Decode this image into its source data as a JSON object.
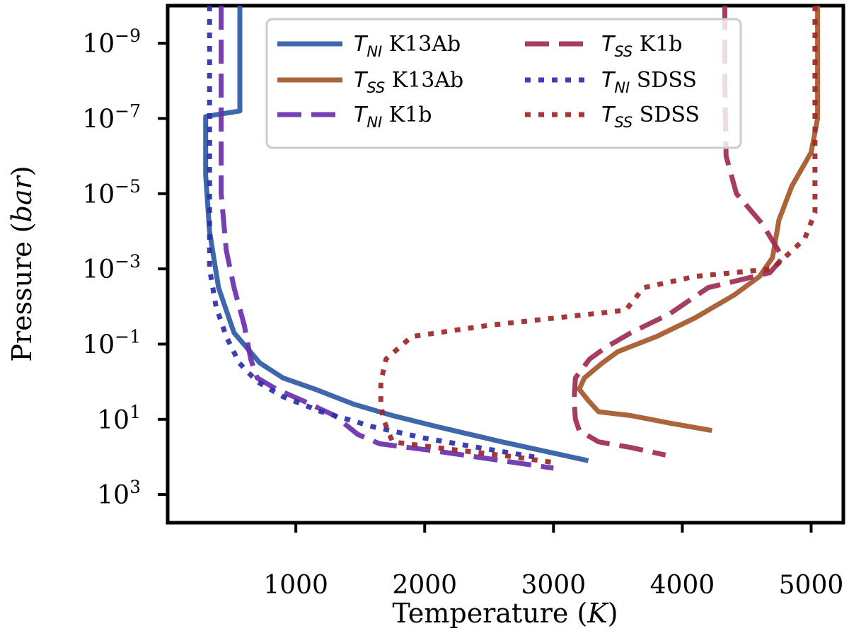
{
  "chart_data": {
    "type": "line",
    "xlabel": "Temperature (K)",
    "xlabel_parts": {
      "main": "Temperature (",
      "var": "K",
      "end": ")"
    },
    "ylabel": "Pressure (bar)",
    "ylabel_parts": {
      "main": "Pressure (",
      "var": "bar",
      "end": ")"
    },
    "xlim": [
      5,
      5250
    ],
    "ylim_log10": [
      -10.0,
      3.75
    ],
    "y_inverted": true,
    "y_scale": "log",
    "grid": false,
    "legend_position": "upper-center",
    "x_ticks": [
      1000,
      2000,
      3000,
      4000,
      5000
    ],
    "x_tick_labels": [
      "1000",
      "2000",
      "3000",
      "4000",
      "5000"
    ],
    "y_ticks": [
      {
        "value": -9,
        "base": "10",
        "exp": "−9"
      },
      {
        "value": -7,
        "base": "10",
        "exp": "−7"
      },
      {
        "value": -5,
        "base": "10",
        "exp": "−5"
      },
      {
        "value": -3,
        "base": "10",
        "exp": "−3"
      },
      {
        "value": -1,
        "base": "10",
        "exp": "−1"
      },
      {
        "value": 1,
        "base": "10",
        "exp": "1"
      },
      {
        "value": 3,
        "base": "10",
        "exp": "3"
      }
    ],
    "series": [
      {
        "name": "T_NI K13Ab",
        "sym": "T",
        "sub": "NI",
        "target": "K13Ab",
        "color": "#2f5ba5",
        "style": "solid",
        "points": [
          [
            565,
            -10
          ],
          [
            565,
            -7.2
          ],
          [
            380,
            -7.1
          ],
          [
            300,
            -7.05
          ],
          [
            300,
            -5.5
          ],
          [
            330,
            -4
          ],
          [
            400,
            -2.5
          ],
          [
            520,
            -1.3
          ],
          [
            720,
            -0.5
          ],
          [
            900,
            -0.1
          ],
          [
            1150,
            0.2
          ],
          [
            1450,
            0.6
          ],
          [
            1750,
            0.9
          ],
          [
            2100,
            1.2
          ],
          [
            2600,
            1.6
          ],
          [
            3270,
            2.1
          ]
        ]
      },
      {
        "name": "T_SS K13Ab",
        "sym": "T",
        "sub": "SS",
        "target": "K13Ab",
        "color": "#a5582a",
        "style": "solid",
        "points": [
          [
            5050,
            -10
          ],
          [
            5050,
            -7
          ],
          [
            5000,
            -6.1
          ],
          [
            4850,
            -5.2
          ],
          [
            4750,
            -4.3
          ],
          [
            4700,
            -3.3
          ],
          [
            4600,
            -2.8
          ],
          [
            4400,
            -2.3
          ],
          [
            4100,
            -1.7
          ],
          [
            3800,
            -1.2
          ],
          [
            3500,
            -0.8
          ],
          [
            3380,
            -0.5
          ],
          [
            3240,
            -0.1
          ],
          [
            3200,
            0.2
          ],
          [
            3270,
            0.5
          ],
          [
            3350,
            0.8
          ],
          [
            3600,
            0.9
          ],
          [
            3900,
            1.1
          ],
          [
            4230,
            1.3
          ]
        ]
      },
      {
        "name": "T_NI K1b",
        "sym": "T",
        "sub": "NI",
        "target": "K1b",
        "color": "#6a2fad",
        "style": "dashed",
        "points": [
          [
            420,
            -10
          ],
          [
            420,
            -7
          ],
          [
            420,
            -5
          ],
          [
            460,
            -3.5
          ],
          [
            520,
            -2.5
          ],
          [
            600,
            -1.5
          ],
          [
            650,
            -0.6
          ],
          [
            700,
            -0.1
          ],
          [
            850,
            0.2
          ],
          [
            1050,
            0.5
          ],
          [
            1300,
            0.9
          ],
          [
            1480,
            1.4
          ],
          [
            1650,
            1.65
          ],
          [
            2100,
            1.85
          ],
          [
            2600,
            2.1
          ],
          [
            3000,
            2.3
          ]
        ]
      },
      {
        "name": "T_SS K1b",
        "sym": "T",
        "sub": "SS",
        "target": "K1b",
        "color": "#a02a55",
        "style": "dashed",
        "points": [
          [
            4330,
            -10
          ],
          [
            4330,
            -8
          ],
          [
            4340,
            -6
          ],
          [
            4420,
            -5
          ],
          [
            4620,
            -4.2
          ],
          [
            4780,
            -3.3
          ],
          [
            4680,
            -2.9
          ],
          [
            4200,
            -2.5
          ],
          [
            3900,
            -1.8
          ],
          [
            3600,
            -1.3
          ],
          [
            3400,
            -0.9
          ],
          [
            3280,
            -0.6
          ],
          [
            3170,
            -0.1
          ],
          [
            3160,
            0.5
          ],
          [
            3170,
            1.0
          ],
          [
            3200,
            1.3
          ],
          [
            3350,
            1.6
          ],
          [
            3600,
            1.75
          ],
          [
            3870,
            1.95
          ]
        ]
      },
      {
        "name": "T_NI SDSS",
        "sym": "T",
        "sub": "NI",
        "target": "SDSS",
        "color": "#2b2fa8",
        "style": "dotted",
        "points": [
          [
            330,
            -10
          ],
          [
            330,
            -7
          ],
          [
            330,
            -5
          ],
          [
            330,
            -3
          ],
          [
            380,
            -2
          ],
          [
            460,
            -1.2
          ],
          [
            560,
            -0.5
          ],
          [
            700,
            0
          ],
          [
            900,
            0.4
          ],
          [
            1200,
            0.8
          ],
          [
            1600,
            1.2
          ],
          [
            2000,
            1.5
          ],
          [
            2500,
            1.8
          ],
          [
            2850,
            2.0
          ]
        ]
      },
      {
        "name": "T_SS SDSS",
        "sym": "T",
        "sub": "SS",
        "target": "SDSS",
        "color": "#9c2727",
        "style": "dotted",
        "points": [
          [
            5030,
            -10
          ],
          [
            5030,
            -6
          ],
          [
            5030,
            -4.5
          ],
          [
            4950,
            -3.8
          ],
          [
            4700,
            -3.0
          ],
          [
            4100,
            -2.8
          ],
          [
            3700,
            -2.5
          ],
          [
            3560,
            -1.9
          ],
          [
            2500,
            -1.5
          ],
          [
            1900,
            -1.2
          ],
          [
            1700,
            -0.6
          ],
          [
            1660,
            0
          ],
          [
            1660,
            0.6
          ],
          [
            1680,
            1.0
          ],
          [
            1750,
            1.6
          ],
          [
            2200,
            1.8
          ],
          [
            2700,
            2.0
          ],
          [
            3000,
            2.15
          ]
        ]
      }
    ],
    "legend": [
      {
        "sym": "T",
        "sub": "NI",
        "label": "K13Ab",
        "series_index": 0
      },
      {
        "sym": "T",
        "sub": "SS",
        "label": "K13Ab",
        "series_index": 1
      },
      {
        "sym": "T",
        "sub": "NI",
        "label": "K1b",
        "series_index": 2
      },
      {
        "sym": "T",
        "sub": "SS",
        "label": "K1b",
        "series_index": 3
      },
      {
        "sym": "T",
        "sub": "NI",
        "label": "SDSS",
        "series_index": 4
      },
      {
        "sym": "T",
        "sub": "SS",
        "label": "SDSS",
        "series_index": 5
      }
    ]
  }
}
